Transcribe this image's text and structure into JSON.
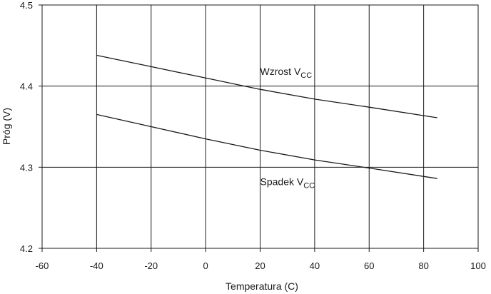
{
  "chart_data": {
    "type": "line",
    "title": "",
    "xlabel": "Temperatura (C)",
    "ylabel": "Próg (V)",
    "xlim": [
      -60,
      100
    ],
    "ylim": [
      4.2,
      4.5
    ],
    "xticks": [
      -60,
      -40,
      -20,
      0,
      20,
      40,
      60,
      80,
      100
    ],
    "yticks": [
      4.2,
      4.3,
      4.4,
      4.5
    ],
    "xtick_labels": [
      "-60",
      "-40",
      "-20",
      "0",
      "20",
      "40",
      "60",
      "80",
      "100"
    ],
    "ytick_labels": [
      "4.2",
      "4.3",
      "4.4",
      "4.5"
    ],
    "grid": true,
    "series": [
      {
        "name": "Wzrost VCC",
        "label_main": "Wzrost V",
        "label_sub": "CC",
        "label_at": [
          20,
          4.414
        ],
        "x": [
          -40,
          -20,
          0,
          20,
          40,
          60,
          85
        ],
        "y": [
          4.438,
          4.424,
          4.41,
          4.396,
          4.384,
          4.374,
          4.361
        ]
      },
      {
        "name": "Spadek VCC",
        "label_main": "Spadek V",
        "label_sub": "CC",
        "label_at": [
          20,
          4.278
        ],
        "x": [
          -40,
          -20,
          0,
          20,
          40,
          60,
          85
        ],
        "y": [
          4.365,
          4.35,
          4.335,
          4.321,
          4.309,
          4.299,
          4.286
        ]
      }
    ],
    "colors": {
      "line": "#1a1a1a",
      "grid": "#1a1a1a",
      "frame": "#1a1a1a"
    }
  }
}
